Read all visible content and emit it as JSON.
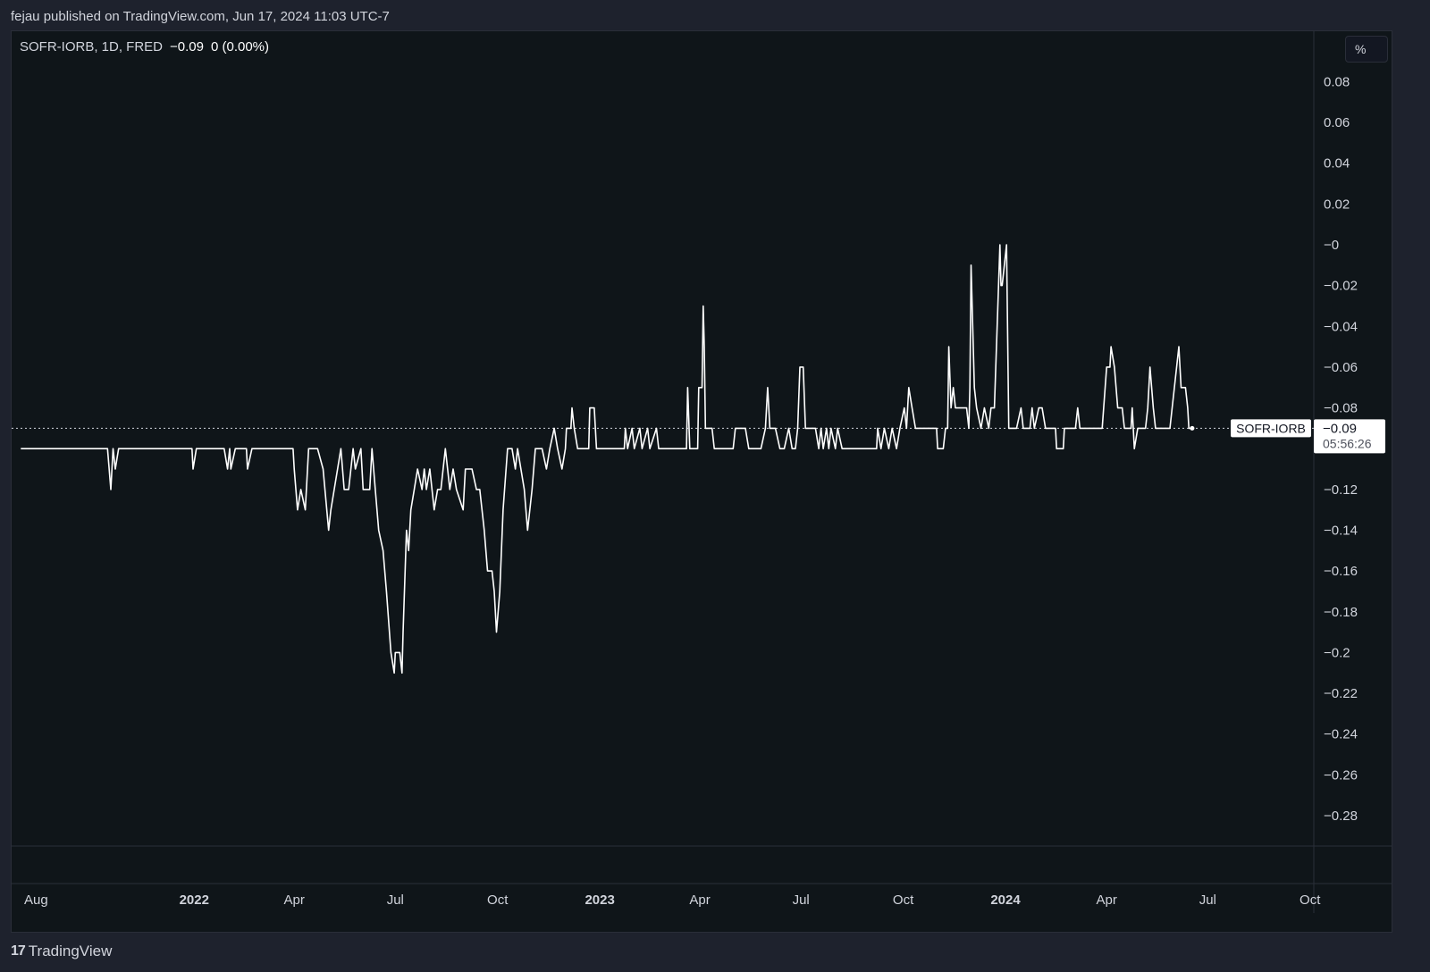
{
  "header": {
    "publisher": "fejau published on TradingView.com, Jun 17, 2024 11:03 UTC-7"
  },
  "legend": {
    "symbol": "SOFR-IORB, 1D, FRED",
    "value": "−0.09",
    "change": "0 (0.00%)"
  },
  "price_scale": {
    "unit_label": "%"
  },
  "last_price": {
    "label": "SOFR-IORB",
    "value": "−0.09",
    "countdown": "05:56:26"
  },
  "footer": {
    "brand": "TradingView",
    "logo_glyph": "17"
  },
  "colors": {
    "line": "#ffffff",
    "pane_bg": "#0f1519",
    "page_bg": "#1e222d",
    "tag_bg": "#ffffff",
    "tag_text": "#131722"
  },
  "chart_data": {
    "type": "line",
    "title": "SOFR-IORB",
    "ylim": [
      -0.3,
      0.09
    ],
    "y_ticks": [
      0.08,
      0.06,
      0.04,
      0.02,
      0,
      -0.02,
      -0.04,
      -0.06,
      -0.08,
      -0.12,
      -0.14,
      -0.16,
      -0.18,
      -0.2,
      -0.22,
      -0.24,
      -0.26,
      -0.28
    ],
    "y_tick_labels": [
      "0.08",
      "0.06",
      "0.04",
      "0.02",
      "−0",
      "−0.02",
      "−0.04",
      "−0.06",
      "−0.08",
      "−0.12",
      "−0.14",
      "−0.16",
      "−0.18",
      "−0.2",
      "−0.22",
      "−0.24",
      "−0.26",
      "−0.28"
    ],
    "x_ticks": [
      {
        "label": "Aug",
        "date": "2021-08-01",
        "bold": false
      },
      {
        "label": "2022",
        "date": "2022-01-01",
        "bold": true
      },
      {
        "label": "Apr",
        "date": "2022-04-01",
        "bold": false
      },
      {
        "label": "Jul",
        "date": "2022-07-01",
        "bold": false
      },
      {
        "label": "Oct",
        "date": "2022-10-01",
        "bold": false
      },
      {
        "label": "2023",
        "date": "2023-01-01",
        "bold": true
      },
      {
        "label": "Apr",
        "date": "2023-04-01",
        "bold": false
      },
      {
        "label": "Jul",
        "date": "2023-07-01",
        "bold": false
      },
      {
        "label": "Oct",
        "date": "2023-10-01",
        "bold": false
      },
      {
        "label": "2024",
        "date": "2024-01-01",
        "bold": true
      },
      {
        "label": "Apr",
        "date": "2024-04-01",
        "bold": false
      },
      {
        "label": "Jul",
        "date": "2024-07-01",
        "bold": false
      },
      {
        "label": "Oct",
        "date": "2024-10-01",
        "bold": false
      }
    ],
    "last_value": -0.09,
    "series": [
      {
        "name": "SOFR-IORB",
        "points": [
          [
            "2021-07-29",
            -0.1
          ],
          [
            "2021-10-15",
            -0.1
          ],
          [
            "2021-10-18",
            -0.12
          ],
          [
            "2021-10-20",
            -0.1
          ],
          [
            "2021-10-22",
            -0.11
          ],
          [
            "2021-10-25",
            -0.1
          ],
          [
            "2021-12-30",
            -0.1
          ],
          [
            "2021-12-31",
            -0.11
          ],
          [
            "2022-01-03",
            -0.1
          ],
          [
            "2022-01-28",
            -0.1
          ],
          [
            "2022-01-31",
            -0.11
          ],
          [
            "2022-02-02",
            -0.1
          ],
          [
            "2022-02-03",
            -0.11
          ],
          [
            "2022-02-07",
            -0.1
          ],
          [
            "2022-02-17",
            -0.1
          ],
          [
            "2022-02-18",
            -0.11
          ],
          [
            "2022-02-22",
            -0.1
          ],
          [
            "2022-03-31",
            -0.1
          ],
          [
            "2022-04-01",
            -0.11
          ],
          [
            "2022-04-04",
            -0.13
          ],
          [
            "2022-04-07",
            -0.12
          ],
          [
            "2022-04-11",
            -0.13
          ],
          [
            "2022-04-14",
            -0.1
          ],
          [
            "2022-04-22",
            -0.1
          ],
          [
            "2022-04-27",
            -0.11
          ],
          [
            "2022-05-02",
            -0.14
          ],
          [
            "2022-05-04",
            -0.13
          ],
          [
            "2022-05-10",
            -0.11
          ],
          [
            "2022-05-13",
            -0.1
          ],
          [
            "2022-05-16",
            -0.12
          ],
          [
            "2022-05-20",
            -0.12
          ],
          [
            "2022-05-24",
            -0.1
          ],
          [
            "2022-05-26",
            -0.11
          ],
          [
            "2022-05-31",
            -0.1
          ],
          [
            "2022-06-02",
            -0.12
          ],
          [
            "2022-06-08",
            -0.12
          ],
          [
            "2022-06-10",
            -0.1
          ],
          [
            "2022-06-13",
            -0.12
          ],
          [
            "2022-06-16",
            -0.14
          ],
          [
            "2022-06-20",
            -0.15
          ],
          [
            "2022-06-23",
            -0.17
          ],
          [
            "2022-06-27",
            -0.2
          ],
          [
            "2022-06-30",
            -0.21
          ],
          [
            "2022-07-01",
            -0.2
          ],
          [
            "2022-07-05",
            -0.2
          ],
          [
            "2022-07-07",
            -0.21
          ],
          [
            "2022-07-08",
            -0.19
          ],
          [
            "2022-07-11",
            -0.14
          ],
          [
            "2022-07-13",
            -0.15
          ],
          [
            "2022-07-15",
            -0.13
          ],
          [
            "2022-07-18",
            -0.12
          ],
          [
            "2022-07-21",
            -0.11
          ],
          [
            "2022-07-25",
            -0.12
          ],
          [
            "2022-07-27",
            -0.11
          ],
          [
            "2022-07-29",
            -0.12
          ],
          [
            "2022-08-01",
            -0.11
          ],
          [
            "2022-08-05",
            -0.13
          ],
          [
            "2022-08-08",
            -0.12
          ],
          [
            "2022-08-11",
            -0.12
          ],
          [
            "2022-08-15",
            -0.1
          ],
          [
            "2022-08-17",
            -0.11
          ],
          [
            "2022-08-19",
            -0.12
          ],
          [
            "2022-08-22",
            -0.11
          ],
          [
            "2022-08-25",
            -0.12
          ],
          [
            "2022-08-31",
            -0.13
          ],
          [
            "2022-09-02",
            -0.11
          ],
          [
            "2022-09-08",
            -0.11
          ],
          [
            "2022-09-12",
            -0.12
          ],
          [
            "2022-09-15",
            -0.12
          ],
          [
            "2022-09-19",
            -0.14
          ],
          [
            "2022-09-22",
            -0.16
          ],
          [
            "2022-09-26",
            -0.16
          ],
          [
            "2022-09-28",
            -0.17
          ],
          [
            "2022-09-30",
            -0.19
          ],
          [
            "2022-10-03",
            -0.17
          ],
          [
            "2022-10-06",
            -0.13
          ],
          [
            "2022-10-10",
            -0.1
          ],
          [
            "2022-10-14",
            -0.1
          ],
          [
            "2022-10-17",
            -0.11
          ],
          [
            "2022-10-19",
            -0.1
          ],
          [
            "2022-10-25",
            -0.12
          ],
          [
            "2022-10-28",
            -0.14
          ],
          [
            "2022-11-01",
            -0.12
          ],
          [
            "2022-11-04",
            -0.1
          ],
          [
            "2022-11-10",
            -0.1
          ],
          [
            "2022-11-14",
            -0.11
          ],
          [
            "2022-11-17",
            -0.1
          ],
          [
            "2022-11-21",
            -0.09
          ],
          [
            "2022-11-24",
            -0.1
          ],
          [
            "2022-11-28",
            -0.11
          ],
          [
            "2022-12-01",
            -0.1
          ],
          [
            "2022-12-02",
            -0.09
          ],
          [
            "2022-12-06",
            -0.09
          ],
          [
            "2022-12-07",
            -0.08
          ],
          [
            "2022-12-09",
            -0.09
          ],
          [
            "2022-12-12",
            -0.1
          ],
          [
            "2022-12-22",
            -0.1
          ],
          [
            "2022-12-23",
            -0.08
          ],
          [
            "2022-12-27",
            -0.08
          ],
          [
            "2022-12-29",
            -0.1
          ],
          [
            "2023-01-23",
            -0.1
          ],
          [
            "2023-01-24",
            -0.09
          ],
          [
            "2023-01-26",
            -0.1
          ],
          [
            "2023-01-30",
            -0.09
          ],
          [
            "2023-02-01",
            -0.1
          ],
          [
            "2023-02-06",
            -0.09
          ],
          [
            "2023-02-08",
            -0.1
          ],
          [
            "2023-02-13",
            -0.09
          ],
          [
            "2023-02-15",
            -0.1
          ],
          [
            "2023-02-21",
            -0.09
          ],
          [
            "2023-02-23",
            -0.1
          ],
          [
            "2023-03-20",
            -0.1
          ],
          [
            "2023-03-21",
            -0.07
          ],
          [
            "2023-03-23",
            -0.1
          ],
          [
            "2023-03-30",
            -0.1
          ],
          [
            "2023-03-31",
            -0.07
          ],
          [
            "2023-04-03",
            -0.07
          ],
          [
            "2023-04-04",
            -0.03
          ],
          [
            "2023-04-05",
            -0.05
          ],
          [
            "2023-04-06",
            -0.09
          ],
          [
            "2023-04-12",
            -0.09
          ],
          [
            "2023-04-14",
            -0.1
          ],
          [
            "2023-05-01",
            -0.1
          ],
          [
            "2023-05-03",
            -0.09
          ],
          [
            "2023-05-12",
            -0.09
          ],
          [
            "2023-05-15",
            -0.1
          ],
          [
            "2023-05-26",
            -0.1
          ],
          [
            "2023-05-30",
            -0.09
          ],
          [
            "2023-06-01",
            -0.07
          ],
          [
            "2023-06-03",
            -0.09
          ],
          [
            "2023-06-08",
            -0.09
          ],
          [
            "2023-06-12",
            -0.1
          ],
          [
            "2023-06-16",
            -0.1
          ],
          [
            "2023-06-20",
            -0.09
          ],
          [
            "2023-06-23",
            -0.1
          ],
          [
            "2023-06-26",
            -0.1
          ],
          [
            "2023-06-28",
            -0.09
          ],
          [
            "2023-06-30",
            -0.06
          ],
          [
            "2023-07-03",
            -0.06
          ],
          [
            "2023-07-05",
            -0.09
          ],
          [
            "2023-07-14",
            -0.09
          ],
          [
            "2023-07-17",
            -0.1
          ],
          [
            "2023-07-19",
            -0.09
          ],
          [
            "2023-07-21",
            -0.1
          ],
          [
            "2023-07-24",
            -0.09
          ],
          [
            "2023-07-26",
            -0.1
          ],
          [
            "2023-07-28",
            -0.09
          ],
          [
            "2023-08-01",
            -0.1
          ],
          [
            "2023-08-03",
            -0.09
          ],
          [
            "2023-08-07",
            -0.1
          ],
          [
            "2023-09-07",
            -0.1
          ],
          [
            "2023-09-08",
            -0.09
          ],
          [
            "2023-09-11",
            -0.1
          ],
          [
            "2023-09-14",
            -0.09
          ],
          [
            "2023-09-18",
            -0.1
          ],
          [
            "2023-09-21",
            -0.09
          ],
          [
            "2023-09-25",
            -0.1
          ],
          [
            "2023-09-28",
            -0.09
          ],
          [
            "2023-10-02",
            -0.08
          ],
          [
            "2023-10-04",
            -0.09
          ],
          [
            "2023-10-06",
            -0.07
          ],
          [
            "2023-10-09",
            -0.08
          ],
          [
            "2023-10-12",
            -0.09
          ],
          [
            "2023-10-31",
            -0.09
          ],
          [
            "2023-11-01",
            -0.1
          ],
          [
            "2023-11-06",
            -0.1
          ],
          [
            "2023-11-08",
            -0.09
          ],
          [
            "2023-11-10",
            -0.09
          ],
          [
            "2023-11-11",
            -0.05
          ],
          [
            "2023-11-13",
            -0.08
          ],
          [
            "2023-11-15",
            -0.07
          ],
          [
            "2023-11-17",
            -0.08
          ],
          [
            "2023-11-27",
            -0.08
          ],
          [
            "2023-11-29",
            -0.09
          ],
          [
            "2023-11-30",
            -0.07
          ],
          [
            "2023-12-01",
            -0.01
          ],
          [
            "2023-12-04",
            -0.07
          ],
          [
            "2023-12-06",
            -0.08
          ],
          [
            "2023-12-10",
            -0.09
          ],
          [
            "2023-12-13",
            -0.08
          ],
          [
            "2023-12-17",
            -0.09
          ],
          [
            "2023-12-19",
            -0.08
          ],
          [
            "2023-12-22",
            -0.08
          ],
          [
            "2023-12-27",
            0.0
          ],
          [
            "2023-12-28",
            -0.02
          ],
          [
            "2023-12-29",
            -0.02
          ],
          [
            "2024-01-02",
            0.0
          ],
          [
            "2024-01-04",
            -0.09
          ],
          [
            "2024-01-11",
            -0.09
          ],
          [
            "2024-01-15",
            -0.08
          ],
          [
            "2024-01-17",
            -0.09
          ],
          [
            "2024-01-23",
            -0.09
          ],
          [
            "2024-01-25",
            -0.08
          ],
          [
            "2024-01-27",
            -0.09
          ],
          [
            "2024-01-31",
            -0.08
          ],
          [
            "2024-02-03",
            -0.08
          ],
          [
            "2024-02-06",
            -0.09
          ],
          [
            "2024-02-15",
            -0.09
          ],
          [
            "2024-02-16",
            -0.1
          ],
          [
            "2024-02-22",
            -0.1
          ],
          [
            "2024-02-23",
            -0.09
          ],
          [
            "2024-03-04",
            -0.09
          ],
          [
            "2024-03-06",
            -0.08
          ],
          [
            "2024-03-08",
            -0.09
          ],
          [
            "2024-03-28",
            -0.09
          ],
          [
            "2024-04-01",
            -0.06
          ],
          [
            "2024-04-04",
            -0.06
          ],
          [
            "2024-04-05",
            -0.05
          ],
          [
            "2024-04-08",
            -0.06
          ],
          [
            "2024-04-11",
            -0.08
          ],
          [
            "2024-04-15",
            -0.08
          ],
          [
            "2024-04-17",
            -0.09
          ],
          [
            "2024-04-23",
            -0.09
          ],
          [
            "2024-04-24",
            -0.08
          ],
          [
            "2024-04-26",
            -0.1
          ],
          [
            "2024-04-29",
            -0.09
          ],
          [
            "2024-05-06",
            -0.09
          ],
          [
            "2024-05-08",
            -0.08
          ],
          [
            "2024-05-10",
            -0.06
          ],
          [
            "2024-05-13",
            -0.08
          ],
          [
            "2024-05-15",
            -0.09
          ],
          [
            "2024-05-28",
            -0.09
          ],
          [
            "2024-05-30",
            -0.08
          ],
          [
            "2024-06-03",
            -0.06
          ],
          [
            "2024-06-05",
            -0.05
          ],
          [
            "2024-06-07",
            -0.07
          ],
          [
            "2024-06-11",
            -0.07
          ],
          [
            "2024-06-13",
            -0.08
          ],
          [
            "2024-06-14",
            -0.09
          ],
          [
            "2024-06-17",
            -0.09
          ]
        ]
      }
    ]
  }
}
